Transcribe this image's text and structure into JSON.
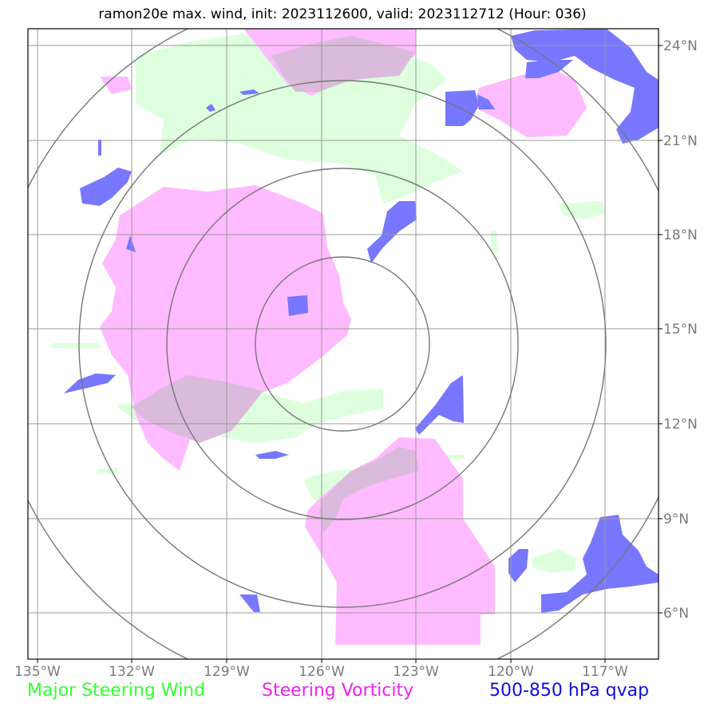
{
  "title": "ramon20e max. wind, init: 2023112600, valid: 2023112712 (Hour: 036)",
  "colors": {
    "steering_wind": "#ddffdd",
    "steering_vorticity": "#ffbbff",
    "qvap": "#7777ff",
    "overlap": "#dbbbdb",
    "grid": "#9a9a9a",
    "range_rings": "#777777"
  },
  "map": {
    "lon_ticks": [
      "135°W",
      "132°W",
      "129°W",
      "126°W",
      "123°W",
      "120°W",
      "117°W"
    ],
    "lat_ticks": [
      "24°N",
      "21°N",
      "18°N",
      "15°N",
      "12°N",
      "9°N",
      "6°N"
    ],
    "lon_values": [
      -135,
      -132,
      -129,
      -126,
      -123,
      -120,
      -117
    ],
    "lat_values": [
      24,
      21,
      18,
      15,
      12,
      9,
      6
    ],
    "extent": {
      "lon_min": -135.3,
      "lon_max": -115.2,
      "lat_min": 4.7,
      "lat_max": 24.5
    },
    "center": {
      "lon": -125.6,
      "lat": 14.5
    },
    "range_rings": 4
  },
  "legend": {
    "wind": "Major Steering Wind",
    "vorticity": "Steering Vorticity",
    "qvap": "500-850 hPa qvap"
  }
}
